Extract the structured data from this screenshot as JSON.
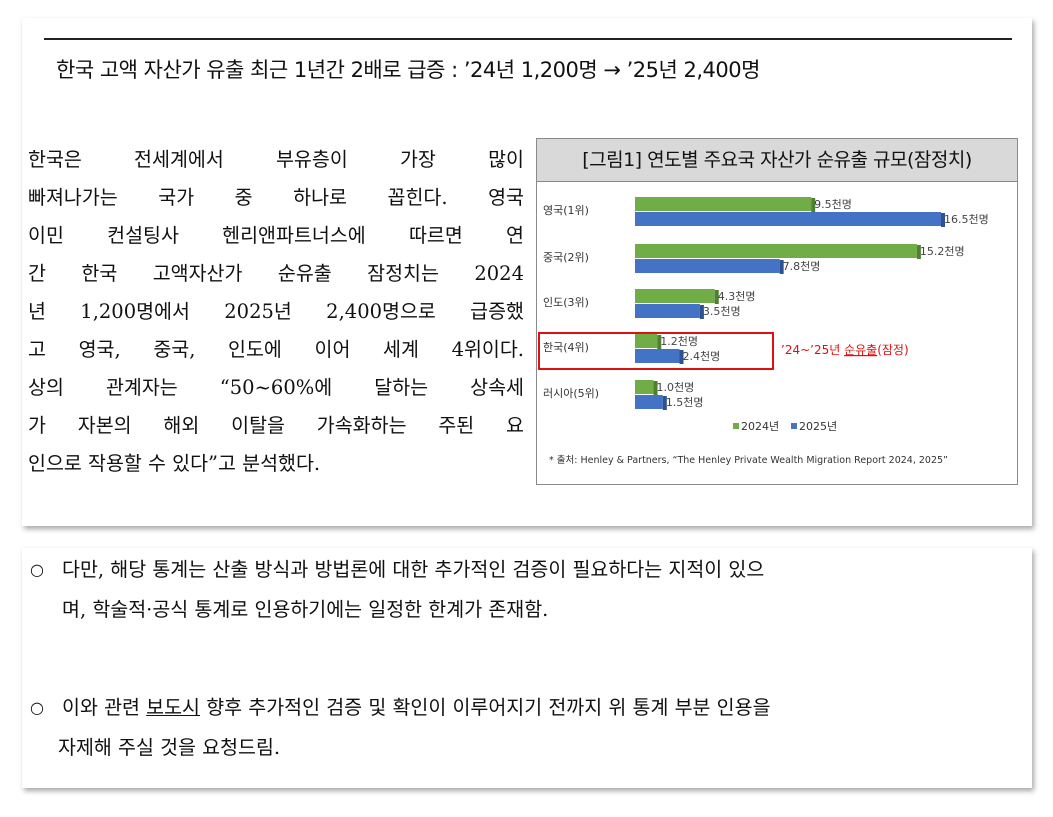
{
  "headline": "한국 고액 자산가 유출 최근 1년간 2배로 급증 : ’24년 1,200명 → ’25년 2,400명",
  "body_lines": [
    "  한국은 전세계에서 부유층이 가장 많이",
    "빠져나가는 국가 중 하나로 꼽힌다. 영국",
    "이민 컨설팅사 헨리앤파트너스에 따르면 연",
    "간 한국 고액자산가 순유출 잠정치는 2024",
    "년 1,200명에서 2025년 2,400명으로 급증했",
    "고 영국, 중국, 인도에 이어 세계 4위이다.",
    "상의 관계자는 “50~60%에 달하는 상속세",
    "가 자본의 해외 이탈을 가속화하는 주된 요",
    "인으로 작용할 수 있다”고 분석했다."
  ],
  "figure": {
    "title": "[그림1] 연도별 주요국 자산가 순유출 규모(잠정치)",
    "source": "* 출처: Henley & Partners, “The Henley Private Wealth Migration Report 2024, 2025”",
    "highlight_label": "’24~’25년 순유출(잠정)",
    "highlight_label_underlined": "순유출"
  },
  "chart_data": {
    "type": "bar",
    "orientation": "horizontal",
    "categories": [
      "영국(1위)",
      "중국(2위)",
      "인도(3위)",
      "한국(4위)",
      "러시아(5위)"
    ],
    "series": [
      {
        "name": "2024년",
        "values": [
          9.5,
          15.2,
          4.3,
          1.2,
          1.0
        ],
        "labels": [
          "9.5천명",
          "15.2천명",
          "4.3천명",
          "1.2천명",
          "1.0천명"
        ],
        "color": "#70ad47"
      },
      {
        "name": "2025년",
        "values": [
          16.5,
          7.8,
          3.5,
          2.4,
          1.5
        ],
        "labels": [
          "16.5천명",
          "7.8천명",
          "3.5천명",
          "2.4천명",
          "1.5천명"
        ],
        "color": "#4472c4"
      }
    ],
    "legend_placement": "bottom",
    "highlighted_category": "한국(4위)",
    "highlight_color": "#e01010"
  },
  "bullets": [
    {
      "mark": "○",
      "lines": [
        "다만, 해당 통계는 산출 방식과 방법론에 대한 추가적인 검증이 필요하다는 지적이 있으",
        "며, 학술적·공식 통계로 인용하기에는 일정한 한계가 존재함."
      ]
    },
    {
      "mark": "○",
      "lines": [
        "이와 관련 보도시 향후 추가적인 검증 및 확인이 이루어지기 전까지 위 통계 부분 인용을",
        "자제해 주실 것을 요청드림."
      ]
    }
  ]
}
